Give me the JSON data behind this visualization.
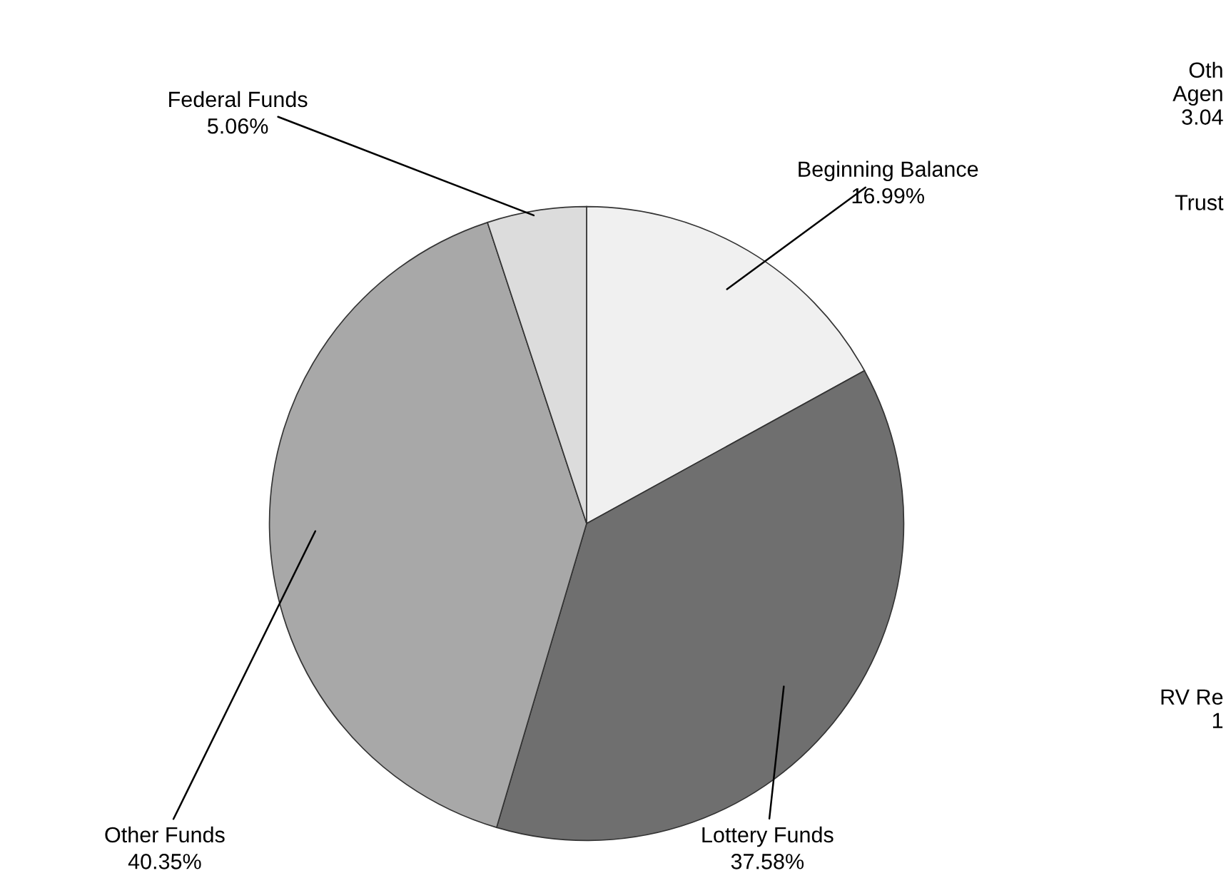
{
  "chart_data": {
    "type": "pie",
    "categories": [
      "Beginning Balance",
      "Lottery Funds",
      "Other Funds",
      "Federal Funds"
    ],
    "values": [
      16.99,
      37.58,
      40.35,
      5.06
    ],
    "colors": [
      "#f0f0f0",
      "#6f6f6f",
      "#a8a8a8",
      "#dcdcdc"
    ],
    "value_labels": [
      "16.99%",
      "37.58%",
      "40.35%",
      "5.06%"
    ],
    "legend": false,
    "annotations": [
      "Oth\nAgen\n3.04",
      "Trust",
      "RV Re\n1"
    ]
  }
}
